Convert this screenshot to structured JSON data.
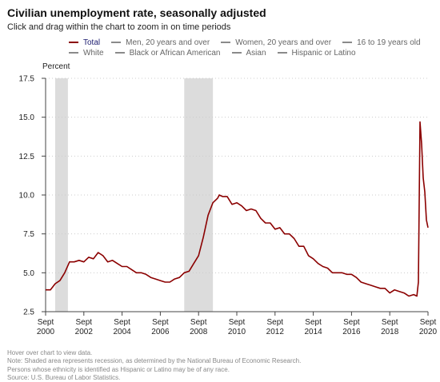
{
  "title": "Civilian unemployment rate, seasonally adjusted",
  "subtitle": "Click and drag within the chart to zoom in on time periods",
  "legend": {
    "row1": [
      {
        "label": "Total",
        "active": true
      },
      {
        "label": "Men, 20 years and over",
        "active": false
      },
      {
        "label": "Women, 20 years and over",
        "active": false
      },
      {
        "label": "16 to 19 years old",
        "active": false
      }
    ],
    "row2": [
      {
        "label": "White",
        "active": false
      },
      {
        "label": "Black or African American",
        "active": false
      },
      {
        "label": "Asian",
        "active": false
      },
      {
        "label": "Hispanic or Latino",
        "active": false
      }
    ]
  },
  "notes": [
    "Hover over chart to view data.",
    "Note: Shaded area represents recession, as determined by the National Bureau of Economic Research.",
    "Persons whose ethnicity is identified as Hispanic or Latino may be of any race.",
    "Source: U.S. Bureau of Labor Statistics."
  ],
  "colors": {
    "series_total": "#8b0000",
    "recession_shade": "#dcdcdc",
    "grid": "#cccccc",
    "legend_active_text": "#1a1a6e",
    "legend_inactive": "#8a8a8a"
  },
  "chart_data": {
    "type": "line",
    "ylabel": "Percent",
    "ylim": [
      2.5,
      17.5
    ],
    "yticks": [
      "2.5",
      "5.0",
      "7.5",
      "10.0",
      "12.5",
      "15.0",
      "17.5"
    ],
    "xlim": [
      "2000-09",
      "2020-09"
    ],
    "xticks": [
      {
        "top": "Sept",
        "bottom": "2000",
        "date": "2000-09"
      },
      {
        "top": "Sept",
        "bottom": "2002",
        "date": "2002-09"
      },
      {
        "top": "Sept",
        "bottom": "2004",
        "date": "2004-09"
      },
      {
        "top": "Sept",
        "bottom": "2006",
        "date": "2006-09"
      },
      {
        "top": "Sept",
        "bottom": "2008",
        "date": "2008-09"
      },
      {
        "top": "Sept",
        "bottom": "2010",
        "date": "2010-09"
      },
      {
        "top": "Sept",
        "bottom": "2012",
        "date": "2012-09"
      },
      {
        "top": "Sept",
        "bottom": "2014",
        "date": "2014-09"
      },
      {
        "top": "Sept",
        "bottom": "2016",
        "date": "2016-09"
      },
      {
        "top": "Sept",
        "bottom": "2018",
        "date": "2018-09"
      },
      {
        "top": "Sept",
        "bottom": "2020",
        "date": "2020-09"
      }
    ],
    "grid": true,
    "recessions": [
      {
        "start": "2001-03",
        "end": "2001-11"
      },
      {
        "start": "2007-12",
        "end": "2009-06"
      }
    ],
    "series": [
      {
        "name": "Total",
        "x": [
          "2000-09",
          "2000-12",
          "2001-03",
          "2001-06",
          "2001-09",
          "2001-12",
          "2002-03",
          "2002-06",
          "2002-09",
          "2002-12",
          "2003-03",
          "2003-06",
          "2003-09",
          "2003-12",
          "2004-03",
          "2004-06",
          "2004-09",
          "2004-12",
          "2005-03",
          "2005-06",
          "2005-09",
          "2005-12",
          "2006-03",
          "2006-06",
          "2006-09",
          "2006-12",
          "2007-03",
          "2007-06",
          "2007-09",
          "2007-12",
          "2008-03",
          "2008-06",
          "2008-09",
          "2008-12",
          "2009-03",
          "2009-06",
          "2009-09",
          "2009-10",
          "2009-12",
          "2010-03",
          "2010-06",
          "2010-09",
          "2010-12",
          "2011-03",
          "2011-06",
          "2011-09",
          "2011-12",
          "2012-03",
          "2012-06",
          "2012-09",
          "2012-12",
          "2013-03",
          "2013-06",
          "2013-09",
          "2013-12",
          "2014-03",
          "2014-06",
          "2014-09",
          "2014-12",
          "2015-03",
          "2015-06",
          "2015-09",
          "2015-12",
          "2016-03",
          "2016-06",
          "2016-09",
          "2016-12",
          "2017-03",
          "2017-06",
          "2017-09",
          "2017-12",
          "2018-03",
          "2018-06",
          "2018-09",
          "2018-12",
          "2019-03",
          "2019-06",
          "2019-09",
          "2019-12",
          "2020-02",
          "2020-03",
          "2020-04",
          "2020-05",
          "2020-06",
          "2020-07",
          "2020-08",
          "2020-09"
        ],
        "values": [
          3.9,
          3.9,
          4.3,
          4.5,
          5.0,
          5.7,
          5.7,
          5.8,
          5.7,
          6.0,
          5.9,
          6.3,
          6.1,
          5.7,
          5.8,
          5.6,
          5.4,
          5.4,
          5.2,
          5.0,
          5.0,
          4.9,
          4.7,
          4.6,
          4.5,
          4.4,
          4.4,
          4.6,
          4.7,
          5.0,
          5.1,
          5.6,
          6.1,
          7.3,
          8.7,
          9.5,
          9.8,
          10.0,
          9.9,
          9.9,
          9.4,
          9.5,
          9.3,
          9.0,
          9.1,
          9.0,
          8.5,
          8.2,
          8.2,
          7.8,
          7.9,
          7.5,
          7.5,
          7.2,
          6.7,
          6.7,
          6.1,
          5.9,
          5.6,
          5.4,
          5.3,
          5.0,
          5.0,
          5.0,
          4.9,
          4.9,
          4.7,
          4.4,
          4.3,
          4.2,
          4.1,
          4.0,
          4.0,
          3.7,
          3.9,
          3.8,
          3.7,
          3.5,
          3.6,
          3.5,
          4.4,
          14.7,
          13.3,
          11.1,
          10.2,
          8.4,
          7.9
        ]
      }
    ]
  }
}
